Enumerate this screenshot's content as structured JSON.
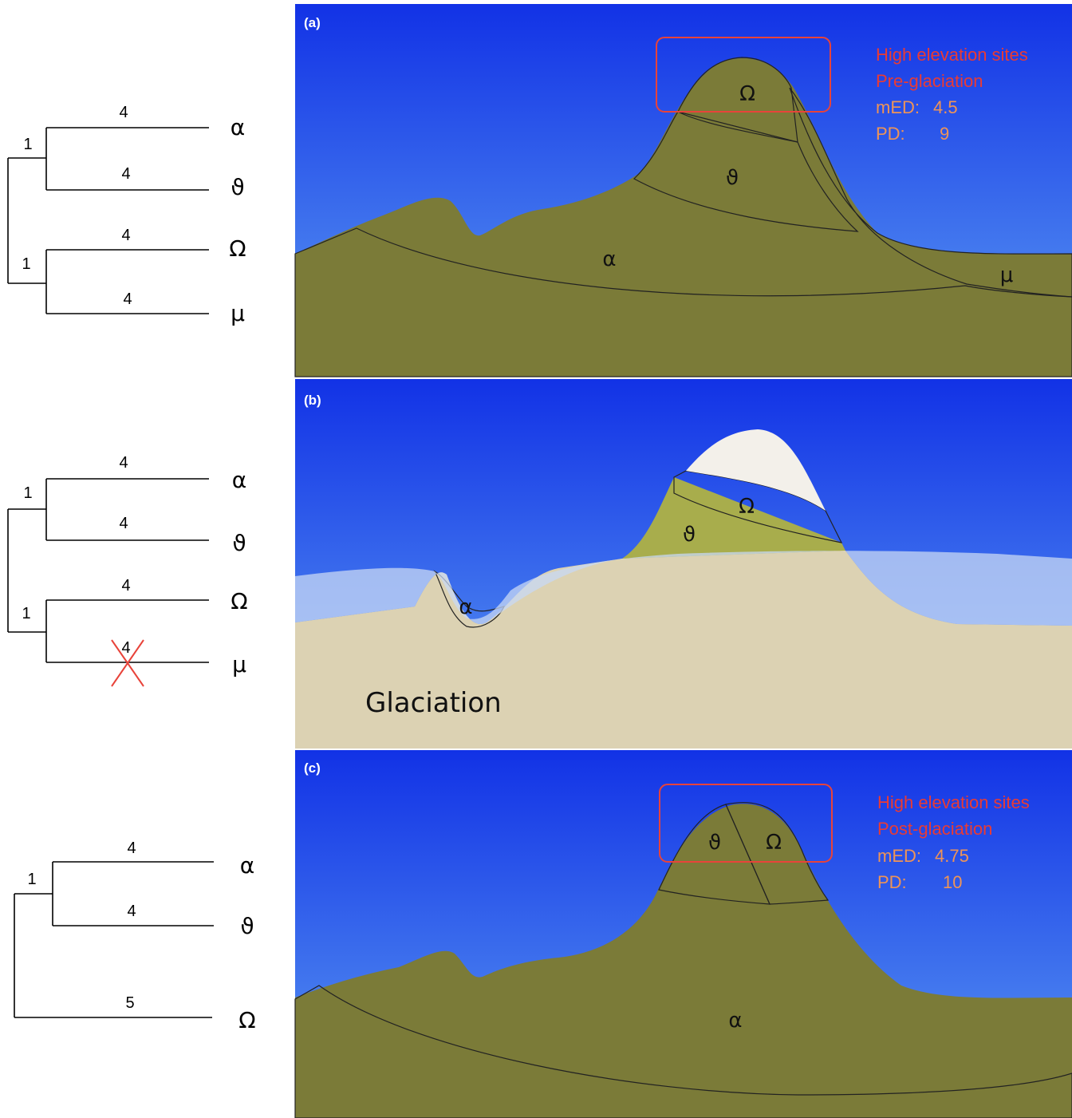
{
  "panels": [
    {
      "label": "(a)",
      "tree": {
        "clades": [
          {
            "support": 1,
            "branches": [
              {
                "length": 4,
                "taxon": "α"
              },
              {
                "length": 4,
                "taxon": "ϑ"
              }
            ]
          },
          {
            "support": 1,
            "branches": [
              {
                "length": 4,
                "taxon": "Ω"
              },
              {
                "length": 4,
                "taxon": "μ"
              }
            ]
          }
        ]
      },
      "zones": [
        "Ω",
        "ϑ",
        "α",
        "μ"
      ],
      "annotation": {
        "title": "High elevation sites",
        "phase": "Pre-glaciation",
        "med_label": "mED:",
        "med": 4.5,
        "pd_label": "PD:",
        "pd": 9
      }
    },
    {
      "label": "(b)",
      "tree": {
        "clades": [
          {
            "support": 1,
            "branches": [
              {
                "length": 4,
                "taxon": "α"
              },
              {
                "length": 4,
                "taxon": "ϑ"
              }
            ]
          },
          {
            "support": 1,
            "branches": [
              {
                "length": 4,
                "taxon": "Ω"
              },
              {
                "length": 4,
                "taxon": "μ"
              }
            ]
          }
        ]
      },
      "zones": [
        "Ω",
        "ϑ",
        "α"
      ],
      "caption": "Glaciation"
    },
    {
      "label": "(c)",
      "tree": {
        "clades": [
          {
            "support": 1,
            "branches": [
              {
                "length": 4,
                "taxon": "α"
              },
              {
                "length": 4,
                "taxon": "ϑ"
              }
            ]
          }
        ],
        "outgroup": {
          "length": 5,
          "taxon": "Ω"
        }
      },
      "zones": [
        "ϑ",
        "Ω",
        "α"
      ],
      "annotation": {
        "title": "High elevation sites",
        "phase": "Post-glaciation",
        "med_label": "mED:",
        "med": 4.75,
        "pd_label": "PD:",
        "pd": 10
      }
    }
  ]
}
